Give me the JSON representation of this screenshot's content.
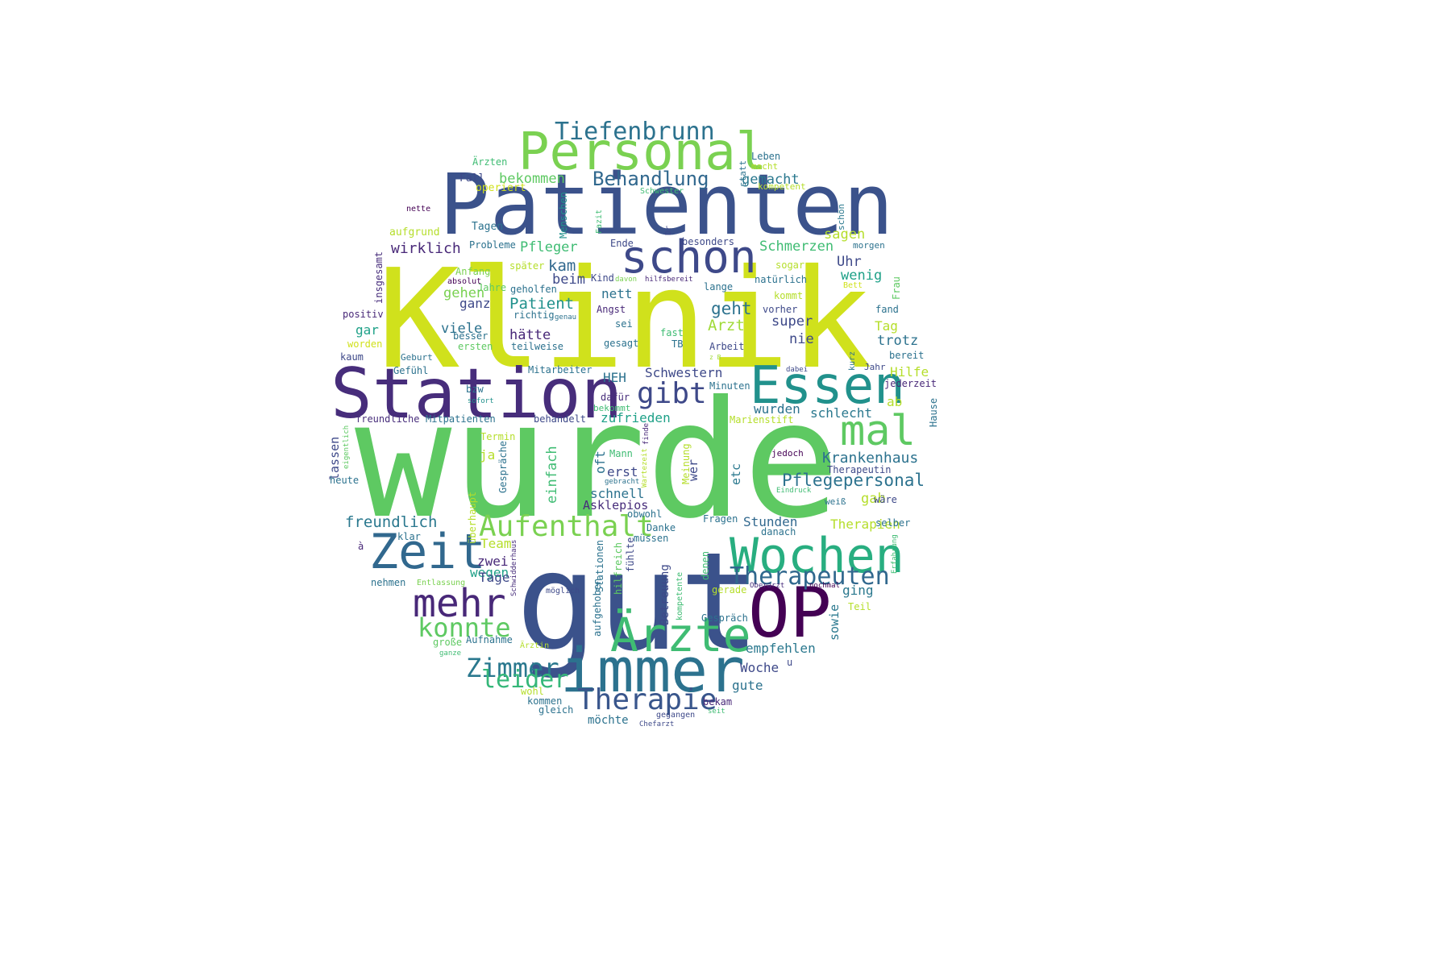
{
  "words": [
    {
      "text": "wurde",
      "size": 200,
      "color": "#5ec962"
    },
    {
      "text": "Klinik",
      "size": 170,
      "color": "#d0e11c"
    },
    {
      "text": "gut",
      "size": 168,
      "color": "#3b528b"
    },
    {
      "text": "Patienten",
      "size": 104,
      "color": "#3b528b"
    },
    {
      "text": "Station",
      "size": 86,
      "color": "#472d7b"
    },
    {
      "text": "OP",
      "size": 86,
      "color": "#440154"
    },
    {
      "text": "immer",
      "size": 76,
      "color": "#2c728e"
    },
    {
      "text": "Personal",
      "size": 64,
      "color": "#7ad151"
    },
    {
      "text": "Essen",
      "size": 64,
      "color": "#21918c"
    },
    {
      "text": "Wochen",
      "size": 60,
      "color": "#28ae80"
    },
    {
      "text": "Zeit",
      "size": 60,
      "color": "#31688e"
    },
    {
      "text": "Ärzte",
      "size": 58,
      "color": "#3fbc73"
    },
    {
      "text": "schon",
      "size": 56,
      "color": "#3e4989"
    },
    {
      "text": "mal",
      "size": 52,
      "color": "#5ec962"
    },
    {
      "text": "mehr",
      "size": 48,
      "color": "#482878"
    },
    {
      "text": "gibt",
      "size": 36,
      "color": "#3e4989"
    },
    {
      "text": "Therapie",
      "size": 36,
      "color": "#39568c"
    },
    {
      "text": "Aufenthalt",
      "size": 36,
      "color": "#7ad151"
    },
    {
      "text": "Zimmer",
      "size": 32,
      "color": "#2a788e"
    },
    {
      "text": "konnte",
      "size": 32,
      "color": "#5ec962"
    },
    {
      "text": "Therapeuten",
      "size": 30,
      "color": "#31688e"
    },
    {
      "text": "Behandlung",
      "size": 24,
      "color": "#31688e"
    },
    {
      "text": "Tiefenbrunn",
      "size": 30,
      "color": "#2c728e"
    },
    {
      "text": "leider",
      "size": 30,
      "color": "#35b779"
    },
    {
      "text": "Pflegepersonal",
      "size": 21,
      "color": "#2c728e"
    },
    {
      "text": "Krankenhaus",
      "size": 18,
      "color": "#2c728e"
    },
    {
      "text": "freundlich",
      "size": 19,
      "color": "#2a788e"
    },
    {
      "text": "wirklich",
      "size": 18,
      "color": "#482878"
    },
    {
      "text": "Pfleger",
      "size": 17,
      "color": "#3fbc73"
    },
    {
      "text": "bekommen",
      "size": 17,
      "color": "#5ec962"
    },
    {
      "text": "gemacht",
      "size": 17,
      "color": "#2a788e"
    },
    {
      "text": "Schmerzen",
      "size": 17,
      "color": "#3fbc73"
    },
    {
      "text": "sagen",
      "size": 17,
      "color": "#b5de2b"
    },
    {
      "text": "Uhr",
      "size": 17,
      "color": "#3e4989"
    },
    {
      "text": "wenig",
      "size": 17,
      "color": "#1fa188"
    },
    {
      "text": "Patient",
      "size": 19,
      "color": "#21918c"
    },
    {
      "text": "geht",
      "size": 21,
      "color": "#2c728e"
    },
    {
      "text": "Arzt",
      "size": 19,
      "color": "#a0da39"
    },
    {
      "text": "kam",
      "size": 19,
      "color": "#31688e"
    },
    {
      "text": "beim",
      "size": 17,
      "color": "#3e4989"
    },
    {
      "text": "gehen",
      "size": 17,
      "color": "#7ad151"
    },
    {
      "text": "ganz",
      "size": 16,
      "color": "#3e4989"
    },
    {
      "text": "viele",
      "size": 17,
      "color": "#2c728e"
    },
    {
      "text": "hätte",
      "size": 17,
      "color": "#482878"
    },
    {
      "text": "nett",
      "size": 16,
      "color": "#2c728e"
    },
    {
      "text": "super",
      "size": 17,
      "color": "#3e4989"
    },
    {
      "text": "nie",
      "size": 17,
      "color": "#3e4989"
    },
    {
      "text": "Tag",
      "size": 16,
      "color": "#b5de2b"
    },
    {
      "text": "trotz",
      "size": 17,
      "color": "#2c728e"
    },
    {
      "text": "Hilfe",
      "size": 16,
      "color": "#b5de2b"
    },
    {
      "text": "ab",
      "size": 16,
      "color": "#b5de2b"
    },
    {
      "text": "gar",
      "size": 16,
      "color": "#1fa188"
    },
    {
      "text": "HEH",
      "size": 16,
      "color": "#2c728e"
    },
    {
      "text": "Schwestern",
      "size": 16,
      "color": "#3e4989"
    },
    {
      "text": "wurden",
      "size": 16,
      "color": "#2c728e"
    },
    {
      "text": "schlecht",
      "size": 16,
      "color": "#2a788e"
    },
    {
      "text": "zufrieden",
      "size": 16,
      "color": "#1fa188"
    },
    {
      "text": "einfach",
      "size": 17,
      "color": "#3fbc73"
    },
    {
      "text": "erst",
      "size": 16,
      "color": "#3e4989"
    },
    {
      "text": "schnell",
      "size": 16,
      "color": "#2c728e"
    },
    {
      "text": "Asklepios",
      "size": 15,
      "color": "#472d7b"
    },
    {
      "text": "gab",
      "size": 17,
      "color": "#b5de2b"
    },
    {
      "text": "Stunden",
      "size": 16,
      "color": "#31688e"
    },
    {
      "text": "Therapien",
      "size": 16,
      "color": "#b5de2b"
    },
    {
      "text": "empfehlen",
      "size": 16,
      "color": "#2a788e"
    },
    {
      "text": "Woche",
      "size": 16,
      "color": "#3e4989"
    },
    {
      "text": "gute",
      "size": 16,
      "color": "#2c728e"
    },
    {
      "text": "Team",
      "size": 16,
      "color": "#b5de2b"
    },
    {
      "text": "zwei",
      "size": 16,
      "color": "#482878"
    },
    {
      "text": "wegen",
      "size": 16,
      "color": "#1fa188"
    },
    {
      "text": "Tage",
      "size": 16,
      "color": "#3e4989"
    },
    {
      "text": "ging",
      "size": 16,
      "color": "#2a788e"
    },
    {
      "text": "sowie",
      "size": 15,
      "color": "#2a788e"
    },
    {
      "text": "lassen",
      "size": 15,
      "color": "#3e4989"
    },
    {
      "text": "ja",
      "size": 16,
      "color": "#b5de2b"
    },
    {
      "text": "oft",
      "size": 16,
      "color": "#2c728e"
    },
    {
      "text": "etc",
      "size": 15,
      "color": "#2a788e"
    },
    {
      "text": "wer",
      "size": 15,
      "color": "#3e4989"
    },
    {
      "text": "Betreuung",
      "size": 14,
      "color": "#3e4989"
    },
    {
      "text": "Fall",
      "size": 13,
      "color": "#3e4989"
    },
    {
      "text": "Ärzten",
      "size": 12,
      "color": "#3fbc73"
    },
    {
      "text": "operiert",
      "size": 13,
      "color": "#d0e11c"
    },
    {
      "text": "aufgrund",
      "size": 13,
      "color": "#b5de2b"
    },
    {
      "text": "Tagen",
      "size": 13,
      "color": "#2c728e"
    },
    {
      "text": "Probleme",
      "size": 12,
      "color": "#2c728e"
    },
    {
      "text": "Menschen",
      "size": 12,
      "color": "#21918c"
    },
    {
      "text": "Ende",
      "size": 12,
      "color": "#3e4989"
    },
    {
      "text": "besonders",
      "size": 12,
      "color": "#3e4989"
    },
    {
      "text": "Leben",
      "size": 12,
      "color": "#2c728e"
    },
    {
      "text": "macht",
      "size": 11,
      "color": "#b5de2b"
    },
    {
      "text": "kompetent",
      "size": 11,
      "color": "#b5de2b"
    },
    {
      "text": "statt",
      "size": 11,
      "color": "#2c728e"
    },
    {
      "text": "Schwester",
      "size": 10,
      "color": "#3fbc73"
    },
    {
      "text": "nette",
      "size": 10,
      "color": "#440154"
    },
    {
      "text": "schön",
      "size": 11,
      "color": "#2a788e"
    },
    {
      "text": "morgen",
      "size": 11,
      "color": "#2c728e"
    },
    {
      "text": "Fazit",
      "size": 10,
      "color": "#3fbc73"
    },
    {
      "text": "Dr",
      "size": 10,
      "color": "#3e4989"
    },
    {
      "text": "insgesamt",
      "size": 12,
      "color": "#472d7b"
    },
    {
      "text": "Anfang",
      "size": 12,
      "color": "#7ad151"
    },
    {
      "text": "später",
      "size": 12,
      "color": "#b5de2b"
    },
    {
      "text": "absolut",
      "size": 10,
      "color": "#440154"
    },
    {
      "text": "Jahre",
      "size": 12,
      "color": "#5ec962"
    },
    {
      "text": "geholfen",
      "size": 12,
      "color": "#2c728e"
    },
    {
      "text": "Kind",
      "size": 12,
      "color": "#3e4989"
    },
    {
      "text": "davon",
      "size": 9,
      "color": "#7ad151"
    },
    {
      "text": "hilfsbereit",
      "size": 9,
      "color": "#482878"
    },
    {
      "text": "lange",
      "size": 12,
      "color": "#2c728e"
    },
    {
      "text": "natürlich",
      "size": 12,
      "color": "#2c728e"
    },
    {
      "text": "sogar",
      "size": 12,
      "color": "#b5de2b"
    },
    {
      "text": "Frau",
      "size": 12,
      "color": "#5ec962"
    },
    {
      "text": "Bett",
      "size": 10,
      "color": "#d0e11c"
    },
    {
      "text": "kommt",
      "size": 12,
      "color": "#b5de2b"
    },
    {
      "text": "vorher",
      "size": 12,
      "color": "#3e4989"
    },
    {
      "text": "fand",
      "size": 12,
      "color": "#2c728e"
    },
    {
      "text": "positiv",
      "size": 12,
      "color": "#482878"
    },
    {
      "text": "richtig",
      "size": 12,
      "color": "#2c728e"
    },
    {
      "text": "genau",
      "size": 9,
      "color": "#2c728e"
    },
    {
      "text": "Angst",
      "size": 12,
      "color": "#482878"
    },
    {
      "text": "sei",
      "size": 12,
      "color": "#2c728e"
    },
    {
      "text": "besser",
      "size": 12,
      "color": "#2c728e"
    },
    {
      "text": "ersten",
      "size": 12,
      "color": "#5ec962"
    },
    {
      "text": "teilweise",
      "size": 12,
      "color": "#2c728e"
    },
    {
      "text": "gesagt",
      "size": 12,
      "color": "#2c728e"
    },
    {
      "text": "fast",
      "size": 12,
      "color": "#3fbc73"
    },
    {
      "text": "TB",
      "size": 12,
      "color": "#2c728e"
    },
    {
      "text": "Arbeit",
      "size": 12,
      "color": "#3e4989"
    },
    {
      "text": "worden",
      "size": 12,
      "color": "#d0e11c"
    },
    {
      "text": "kaum",
      "size": 12,
      "color": "#3e4989"
    },
    {
      "text": "Geburt",
      "size": 11,
      "color": "#2c728e"
    },
    {
      "text": "z B",
      "size": 8,
      "color": "#a0da39"
    },
    {
      "text": "kurz",
      "size": 10,
      "color": "#2c728e"
    },
    {
      "text": "Jahr",
      "size": 11,
      "color": "#3e4989"
    },
    {
      "text": "bereit",
      "size": 12,
      "color": "#2c728e"
    },
    {
      "text": "Gefühl",
      "size": 12,
      "color": "#2c728e"
    },
    {
      "text": "Mitarbeiter",
      "size": 12,
      "color": "#2c728e"
    },
    {
      "text": "dabei",
      "size": 9,
      "color": "#3e4989"
    },
    {
      "text": "jederzeit",
      "size": 12,
      "color": "#482878"
    },
    {
      "text": "Minuten",
      "size": 12,
      "color": "#2c728e"
    },
    {
      "text": "bzw",
      "size": 12,
      "color": "#2c728e"
    },
    {
      "text": "dafür",
      "size": 12,
      "color": "#472d7b"
    },
    {
      "text": "sofort",
      "size": 9,
      "color": "#21918c"
    },
    {
      "text": "bekommt",
      "size": 11,
      "color": "#3fbc73"
    },
    {
      "text": "Marienstift",
      "size": 12,
      "color": "#b5de2b"
    },
    {
      "text": "Hause",
      "size": 12,
      "color": "#2c728e"
    },
    {
      "text": "freundliche",
      "size": 12,
      "color": "#472d7b"
    },
    {
      "text": "Mitpatienten",
      "size": 12,
      "color": "#2c728e"
    },
    {
      "text": "behandelt",
      "size": 12,
      "color": "#3e4989"
    },
    {
      "text": "eigentlich",
      "size": 9,
      "color": "#5ec962"
    },
    {
      "text": "Termin",
      "size": 12,
      "color": "#b5de2b"
    },
    {
      "text": "Gespräche",
      "size": 12,
      "color": "#2c728e"
    },
    {
      "text": "finde",
      "size": 9,
      "color": "#482878"
    },
    {
      "text": "jedoch",
      "size": 11,
      "color": "#440154"
    },
    {
      "text": "Mann",
      "size": 12,
      "color": "#3fbc73"
    },
    {
      "text": "gebracht",
      "size": 9,
      "color": "#2c728e"
    },
    {
      "text": "Wartezeit",
      "size": 9,
      "color": "#b5de2b"
    },
    {
      "text": "Meinung",
      "size": 12,
      "color": "#b5de2b"
    },
    {
      "text": "Therapeutin",
      "size": 12,
      "color": "#3e4989"
    },
    {
      "text": "heute",
      "size": 12,
      "color": "#2c728e"
    },
    {
      "text": "überhaupt",
      "size": 12,
      "color": "#b5de2b"
    },
    {
      "text": "Eindruck",
      "size": 9,
      "color": "#3fbc73"
    },
    {
      "text": "weiß",
      "size": 11,
      "color": "#2c728e"
    },
    {
      "text": "wäre",
      "size": 12,
      "color": "#3e4989"
    },
    {
      "text": "obwohl",
      "size": 12,
      "color": "#2c728e"
    },
    {
      "text": "Fragen",
      "size": 12,
      "color": "#2c728e"
    },
    {
      "text": "selber",
      "size": 12,
      "color": "#2c728e"
    },
    {
      "text": "klar",
      "size": 12,
      "color": "#2c728e"
    },
    {
      "text": "Danke",
      "size": 12,
      "color": "#2c728e"
    },
    {
      "text": "danach",
      "size": 12,
      "color": "#2c728e"
    },
    {
      "text": "müssen",
      "size": 12,
      "color": "#2c728e"
    },
    {
      "text": "à",
      "size": 12,
      "color": "#482878"
    },
    {
      "text": "Erfahrung",
      "size": 9,
      "color": "#3fbc73"
    },
    {
      "text": "nehmen",
      "size": 12,
      "color": "#2c728e"
    },
    {
      "text": "Entlassung",
      "size": 10,
      "color": "#7ad151"
    },
    {
      "text": "Schwidderhaus",
      "size": 9,
      "color": "#472d7b"
    },
    {
      "text": "hilfreich",
      "size": 12,
      "color": "#5ec962"
    },
    {
      "text": "fühlte",
      "size": 12,
      "color": "#3e4989"
    },
    {
      "text": "Stationen",
      "size": 12,
      "color": "#2c728e"
    },
    {
      "text": "denen",
      "size": 12,
      "color": "#3fbc73"
    },
    {
      "text": "Oberarzt",
      "size": 9,
      "color": "#472d7b"
    },
    {
      "text": "nochmal",
      "size": 9,
      "color": "#440154"
    },
    {
      "text": "möglich",
      "size": 10,
      "color": "#3e4989"
    },
    {
      "text": "gerade",
      "size": 12,
      "color": "#b5de2b"
    },
    {
      "text": "Teil",
      "size": 12,
      "color": "#b5de2b"
    },
    {
      "text": "kompetente",
      "size": 10,
      "color": "#3fbc73"
    },
    {
      "text": "aufgehoben",
      "size": 12,
      "color": "#2c728e"
    },
    {
      "text": "Aufnahme",
      "size": 12,
      "color": "#2c728e"
    },
    {
      "text": "große",
      "size": 12,
      "color": "#5ec962"
    },
    {
      "text": "ganze",
      "size": 9,
      "color": "#3fbc73"
    },
    {
      "text": "Ärztin",
      "size": 10,
      "color": "#b5de2b"
    },
    {
      "text": "Gespräch",
      "size": 12,
      "color": "#2c728e"
    },
    {
      "text": "u",
      "size": 12,
      "color": "#3e4989"
    },
    {
      "text": "wohl",
      "size": 12,
      "color": "#b5de2b"
    },
    {
      "text": "kommen",
      "size": 12,
      "color": "#2c728e"
    },
    {
      "text": "gleich",
      "size": 12,
      "color": "#2c728e"
    },
    {
      "text": "bekam",
      "size": 12,
      "color": "#482878"
    },
    {
      "text": "seit",
      "size": 9,
      "color": "#3fbc73"
    },
    {
      "text": "gegangen",
      "size": 10,
      "color": "#3e4989"
    },
    {
      "text": "möchte",
      "size": 14,
      "color": "#2c728e"
    },
    {
      "text": "Chefarzt",
      "size": 9,
      "color": "#3e4989"
    }
  ]
}
